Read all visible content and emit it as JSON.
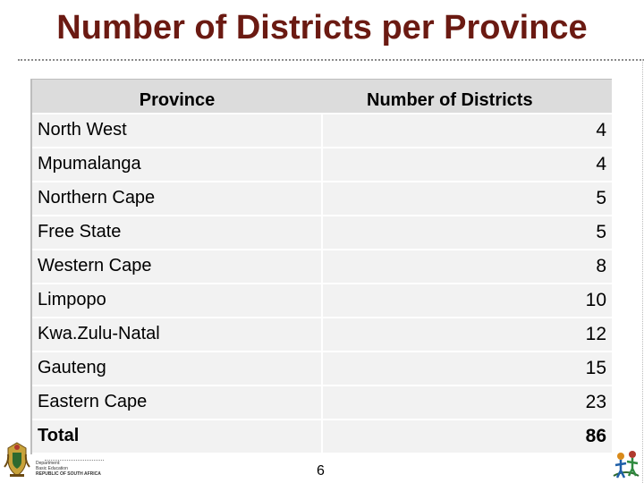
{
  "title": "Number of Districts per Province",
  "table": {
    "headers": [
      "Province",
      "Number of Districts"
    ],
    "rows": [
      {
        "province": "North West",
        "districts": "4"
      },
      {
        "province": "Mpumalanga",
        "districts": "4"
      },
      {
        "province": "Northern Cape",
        "districts": "5"
      },
      {
        "province": "Free State",
        "districts": "5"
      },
      {
        "province": "Western Cape",
        "districts": "8"
      },
      {
        "province": "Limpopo",
        "districts": "10"
      },
      {
        "province": "Kwa.Zulu-Natal",
        "districts": "12"
      },
      {
        "province": "Gauteng",
        "districts": "15"
      },
      {
        "province": "Eastern Cape",
        "districts": "23"
      }
    ],
    "total": {
      "label": "Total",
      "value": "86"
    }
  },
  "footer": {
    "page_number": "6",
    "dept_line1": "Department:",
    "dept_line2": "Basic Education",
    "dept_line3": "REPUBLIC OF SOUTH AFRICA"
  },
  "icons": {
    "left": "coat-of-arms-icon",
    "right": "children-logo-icon"
  }
}
